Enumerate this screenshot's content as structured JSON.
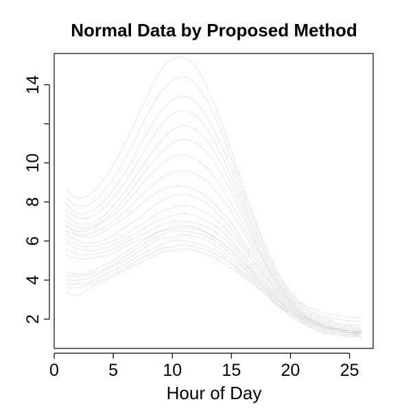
{
  "chart_data": {
    "type": "line",
    "title": "Normal Data by Proposed Method",
    "xlabel": "Hour of Day",
    "ylabel": "",
    "xlim": [
      0,
      27
    ],
    "ylim": [
      0.5,
      15.6
    ],
    "xticks": [
      0,
      5,
      10,
      15,
      20,
      25
    ],
    "yticks": [
      2,
      4,
      6,
      8,
      10,
      14
    ],
    "yticks_unlabeled": [
      12
    ],
    "line_color": "#bdbdbd",
    "line_style": "dotted",
    "legend": "none",
    "grid": false,
    "x": [
      1,
      2,
      3,
      4,
      5,
      6,
      7,
      8,
      9,
      10,
      11,
      12,
      13,
      14,
      15,
      16,
      17,
      18,
      19,
      20,
      21,
      22,
      23,
      24,
      25,
      26
    ],
    "series": [
      {
        "values": [
          8.6,
          8.2,
          8.4,
          9.0,
          9.9,
          11.0,
          12.3,
          13.6,
          14.7,
          15.3,
          15.4,
          14.9,
          13.8,
          12.3,
          10.6,
          8.8,
          7.1,
          5.6,
          4.3,
          3.4,
          2.8,
          2.5,
          2.3,
          2.2,
          2.1,
          2.1
        ]
      },
      {
        "values": [
          8.2,
          7.8,
          7.9,
          8.4,
          9.2,
          10.2,
          11.4,
          12.6,
          13.6,
          14.2,
          14.4,
          14.0,
          13.1,
          11.8,
          10.2,
          8.5,
          6.9,
          5.4,
          4.2,
          3.3,
          2.7,
          2.3,
          2.1,
          2.0,
          1.9,
          1.9
        ]
      },
      {
        "values": [
          7.9,
          7.4,
          7.5,
          7.9,
          8.6,
          9.5,
          10.6,
          11.7,
          12.6,
          13.2,
          13.4,
          13.1,
          12.3,
          11.1,
          9.7,
          8.1,
          6.6,
          5.2,
          4.0,
          3.2,
          2.6,
          2.2,
          2.0,
          1.8,
          1.7,
          1.7
        ]
      },
      {
        "values": [
          7.6,
          7.2,
          7.2,
          7.6,
          8.2,
          9.0,
          10.0,
          11.0,
          11.9,
          12.5,
          12.7,
          12.4,
          11.7,
          10.6,
          9.3,
          7.8,
          6.4,
          5.0,
          3.9,
          3.1,
          2.5,
          2.1,
          1.9,
          1.7,
          1.6,
          1.6
        ]
      },
      {
        "values": [
          7.3,
          6.9,
          6.9,
          7.2,
          7.8,
          8.5,
          9.4,
          10.3,
          11.1,
          11.7,
          11.9,
          11.7,
          11.1,
          10.1,
          8.9,
          7.5,
          6.1,
          4.8,
          3.8,
          3.0,
          2.4,
          2.0,
          1.8,
          1.6,
          1.5,
          1.5
        ]
      },
      {
        "values": [
          7.0,
          6.7,
          6.7,
          7.0,
          7.5,
          8.2,
          9.0,
          9.8,
          10.5,
          11.0,
          11.2,
          11.0,
          10.5,
          9.6,
          8.5,
          7.2,
          5.9,
          4.7,
          3.7,
          2.9,
          2.3,
          1.9,
          1.7,
          1.5,
          1.4,
          1.4
        ]
      },
      {
        "values": [
          6.8,
          6.5,
          6.6,
          6.9,
          7.3,
          7.9,
          8.6,
          9.3,
          9.9,
          10.3,
          10.4,
          10.2,
          9.7,
          8.9,
          7.9,
          6.8,
          5.7,
          4.6,
          3.6,
          2.9,
          2.3,
          1.9,
          1.7,
          1.5,
          1.4,
          1.4
        ]
      },
      {
        "values": [
          6.5,
          6.3,
          6.4,
          6.6,
          7.0,
          7.5,
          8.1,
          8.7,
          9.2,
          9.5,
          9.6,
          9.4,
          9.0,
          8.3,
          7.5,
          6.5,
          5.4,
          4.4,
          3.5,
          2.8,
          2.2,
          1.9,
          1.6,
          1.5,
          1.4,
          1.3
        ]
      },
      {
        "values": [
          6.8,
          6.3,
          6.2,
          6.4,
          6.8,
          7.2,
          7.7,
          8.2,
          8.6,
          8.8,
          8.8,
          8.6,
          8.2,
          7.6,
          6.9,
          6.0,
          5.1,
          4.2,
          3.4,
          2.7,
          2.2,
          1.8,
          1.6,
          1.5,
          1.4,
          1.3
        ]
      },
      {
        "values": [
          6.4,
          6.0,
          5.9,
          6.0,
          6.3,
          6.7,
          7.1,
          7.6,
          8.0,
          8.3,
          8.4,
          8.2,
          7.9,
          7.3,
          6.6,
          5.8,
          4.9,
          4.1,
          3.3,
          2.7,
          2.2,
          1.8,
          1.6,
          1.5,
          1.4,
          1.3
        ]
      },
      {
        "values": [
          6.1,
          5.8,
          5.7,
          5.8,
          6.0,
          6.3,
          6.7,
          7.1,
          7.5,
          7.7,
          7.8,
          7.7,
          7.4,
          6.9,
          6.3,
          5.6,
          4.8,
          4.0,
          3.2,
          2.6,
          2.1,
          1.8,
          1.6,
          1.5,
          1.4,
          1.3
        ]
      },
      {
        "values": [
          5.9,
          5.6,
          5.5,
          5.6,
          5.8,
          6.1,
          6.4,
          6.8,
          7.1,
          7.3,
          7.4,
          7.3,
          7.0,
          6.6,
          6.0,
          5.3,
          4.6,
          3.8,
          3.1,
          2.5,
          2.1,
          1.8,
          1.6,
          1.4,
          1.3,
          1.3
        ]
      },
      {
        "values": [
          5.6,
          5.3,
          5.3,
          5.4,
          5.6,
          5.9,
          6.2,
          6.5,
          6.8,
          7.0,
          7.0,
          6.9,
          6.7,
          6.3,
          5.8,
          5.1,
          4.4,
          3.7,
          3.0,
          2.5,
          2.0,
          1.7,
          1.5,
          1.4,
          1.3,
          1.3
        ]
      },
      {
        "values": [
          5.3,
          5.1,
          5.1,
          5.2,
          5.4,
          5.7,
          6.0,
          6.2,
          6.5,
          6.6,
          6.7,
          6.6,
          6.4,
          6.0,
          5.5,
          4.9,
          4.3,
          3.6,
          3.0,
          2.4,
          2.0,
          1.7,
          1.5,
          1.4,
          1.3,
          1.2
        ]
      },
      {
        "values": [
          4.4,
          4.3,
          4.4,
          4.7,
          5.0,
          5.4,
          5.8,
          6.2,
          6.5,
          6.7,
          6.8,
          6.7,
          6.4,
          6.0,
          5.5,
          4.9,
          4.2,
          3.5,
          2.9,
          2.4,
          2.0,
          1.7,
          1.5,
          1.4,
          1.3,
          1.2
        ]
      },
      {
        "values": [
          4.2,
          4.2,
          4.3,
          4.5,
          4.8,
          5.2,
          5.6,
          6.0,
          6.3,
          6.5,
          6.5,
          6.4,
          6.2,
          5.8,
          5.3,
          4.7,
          4.1,
          3.5,
          2.9,
          2.4,
          2.0,
          1.7,
          1.5,
          1.4,
          1.3,
          1.2
        ]
      },
      {
        "values": [
          4.0,
          4.0,
          4.1,
          4.4,
          4.7,
          5.0,
          5.4,
          5.8,
          6.1,
          6.2,
          6.3,
          6.2,
          6.0,
          5.6,
          5.1,
          4.6,
          4.0,
          3.4,
          2.8,
          2.3,
          1.9,
          1.6,
          1.4,
          1.3,
          1.2,
          1.2
        ]
      },
      {
        "values": [
          3.8,
          3.8,
          3.9,
          4.2,
          4.5,
          4.8,
          5.2,
          5.5,
          5.8,
          6.0,
          6.0,
          5.9,
          5.7,
          5.4,
          4.9,
          4.4,
          3.9,
          3.3,
          2.7,
          2.3,
          1.9,
          1.6,
          1.4,
          1.3,
          1.2,
          1.1
        ]
      },
      {
        "values": [
          3.6,
          3.6,
          3.8,
          4.0,
          4.3,
          4.6,
          5.0,
          5.3,
          5.6,
          5.7,
          5.8,
          5.7,
          5.5,
          5.2,
          4.8,
          4.3,
          3.8,
          3.2,
          2.7,
          2.2,
          1.8,
          1.5,
          1.3,
          1.2,
          1.2,
          1.1
        ]
      },
      {
        "values": [
          3.4,
          3.2,
          3.6,
          3.9,
          4.2,
          4.5,
          4.8,
          5.1,
          5.4,
          5.5,
          5.6,
          5.5,
          5.3,
          5.0,
          4.6,
          4.2,
          3.7,
          3.2,
          2.6,
          2.2,
          1.8,
          1.5,
          1.3,
          1.2,
          1.1,
          1.1
        ]
      }
    ]
  }
}
